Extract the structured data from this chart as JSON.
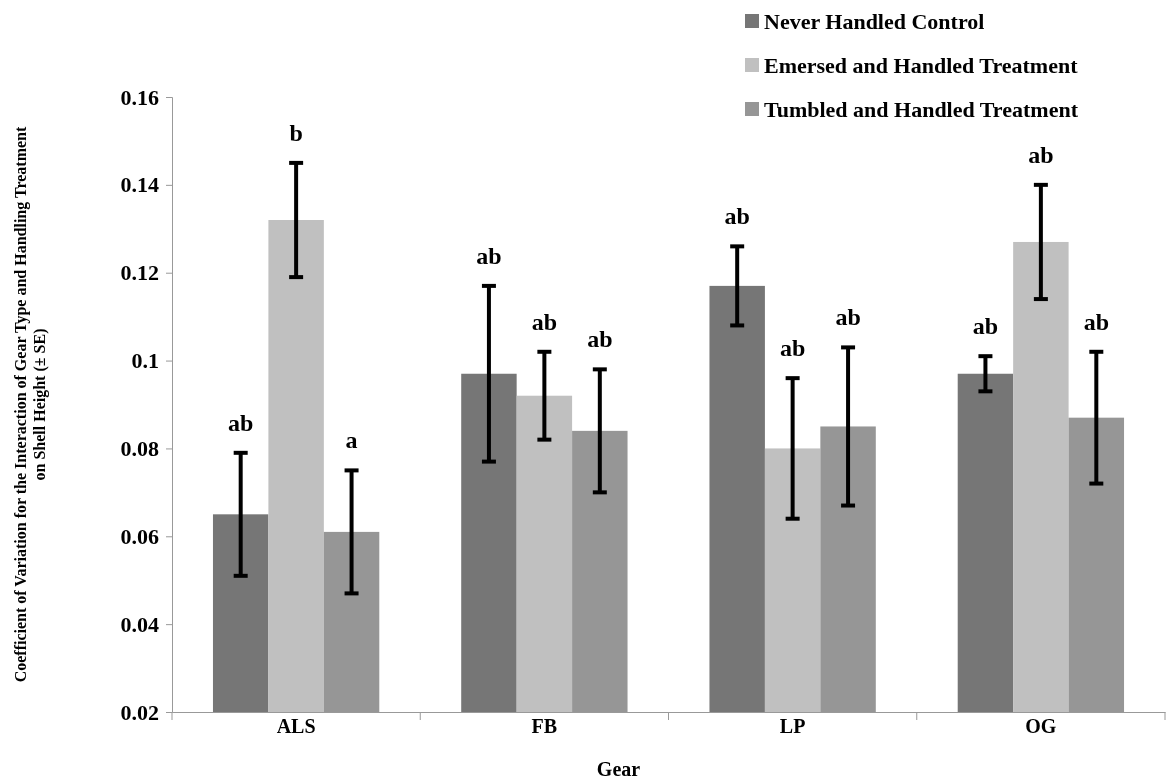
{
  "chart_data": {
    "type": "bar",
    "xlabel": "Gear",
    "ylabel": "Coefficient of Variation for the Interaction of Gear Type and Handling Treatment on Shell Height (± SE)",
    "categories": [
      "ALS",
      "FB",
      "LP",
      "OG"
    ],
    "series": [
      {
        "name": "Never Handled Control",
        "color": "#767676",
        "values": [
          0.065,
          0.097,
          0.117,
          0.097
        ],
        "errors": [
          0.014,
          0.02,
          0.009,
          0.004
        ]
      },
      {
        "name": "Emersed and Handled Treatment",
        "color": "#c0c0c0",
        "values": [
          0.132,
          0.092,
          0.08,
          0.127
        ],
        "errors": [
          0.013,
          0.01,
          0.016,
          0.013
        ]
      },
      {
        "name": "Tumbled and Handled Treatment",
        "color": "#969696",
        "values": [
          0.061,
          0.084,
          0.085,
          0.087
        ],
        "errors": [
          0.014,
          0.014,
          0.018,
          0.015
        ]
      }
    ],
    "annotations": [
      "ab",
      "ab",
      "ab",
      "ab",
      "b",
      "ab",
      "ab",
      "ab",
      "a",
      "ab",
      "ab",
      "ab"
    ],
    "ylim": [
      0.02,
      0.16
    ],
    "yticks": [
      0.02,
      0.04,
      0.06,
      0.08,
      0.1,
      0.12,
      0.14,
      0.16
    ],
    "grid": false,
    "legend": "top right"
  }
}
